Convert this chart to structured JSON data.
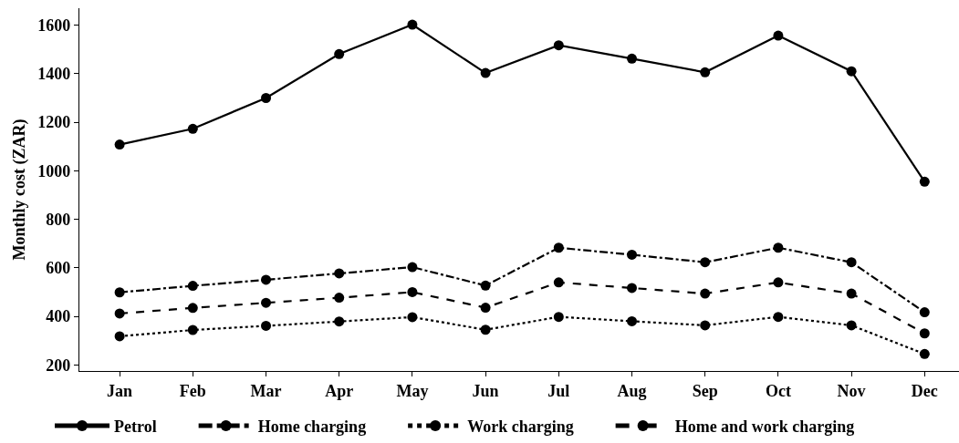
{
  "chart_data": {
    "type": "line",
    "ylabel": "Monthly cost (ZAR)",
    "categories": [
      "Jan",
      "Feb",
      "Mar",
      "Apr",
      "May",
      "Jun",
      "Jul",
      "Aug",
      "Sep",
      "Oct",
      "Nov",
      "Dec"
    ],
    "series": [
      {
        "name": "Petrol",
        "color": "#000000",
        "line_style": "solid",
        "values": [
          1108,
          1173,
          1300,
          1481,
          1602,
          1403,
          1517,
          1462,
          1406,
          1557,
          1410,
          955
        ]
      },
      {
        "name": "Home charging",
        "color": "#000000",
        "line_style": "dashdot",
        "values": [
          499,
          526,
          551,
          577,
          603,
          527,
          683,
          654,
          623,
          683,
          623,
          417
        ]
      },
      {
        "name": "Work charging",
        "color": "#000000",
        "line_style": "dotted",
        "values": [
          318,
          344,
          361,
          379,
          397,
          345,
          398,
          380,
          363,
          398,
          363,
          245
        ]
      },
      {
        "name": "Home and work charging",
        "color": "#000000",
        "line_style": "dashed",
        "values": [
          412,
          435,
          456,
          477,
          500,
          436,
          540,
          517,
          494,
          540,
          494,
          330
        ]
      }
    ],
    "ylim": [
      175,
      1670
    ],
    "yticks": [
      200,
      400,
      600,
      800,
      1000,
      1200,
      1400,
      1600
    ],
    "legend": "bottom",
    "marker": "circle"
  }
}
